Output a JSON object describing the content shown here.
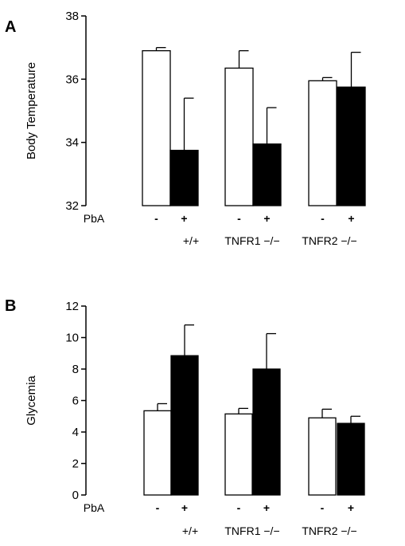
{
  "chart_data": [
    {
      "panel": "A",
      "type": "bar",
      "ylabel": "Body Temperature",
      "ylim": [
        32,
        38
      ],
      "yticks": [
        32,
        34,
        36,
        38
      ],
      "factor_label": "PbA",
      "subgroup_labels": [
        "-",
        "+"
      ],
      "categories": [
        "+/+",
        "TNFR1 −/−",
        "TNFR2 −/−"
      ],
      "series": [
        {
          "key": "minus",
          "values": [
            36.9,
            36.35,
            35.95
          ],
          "errors": [
            0.1,
            0.55,
            0.1
          ],
          "fill": "#ffffff"
        },
        {
          "key": "plus",
          "values": [
            33.75,
            33.95,
            35.75
          ],
          "errors": [
            1.65,
            1.15,
            1.1
          ],
          "fill": "#000000"
        }
      ]
    },
    {
      "panel": "B",
      "type": "bar",
      "ylabel": "Glycemia",
      "ylim": [
        0,
        12
      ],
      "yticks": [
        0,
        2,
        4,
        6,
        8,
        10,
        12
      ],
      "factor_label": "PbA",
      "subgroup_labels": [
        "-",
        "+"
      ],
      "categories": [
        "+/+",
        "TNFR1 −/−",
        "TNFR2 −/−"
      ],
      "series": [
        {
          "key": "minus",
          "values": [
            5.35,
            5.15,
            4.9
          ],
          "errors": [
            0.45,
            0.35,
            0.55
          ],
          "fill": "#ffffff"
        },
        {
          "key": "plus",
          "values": [
            8.85,
            8.0,
            4.55
          ],
          "errors": [
            1.95,
            2.25,
            0.45
          ],
          "fill": "#000000"
        }
      ]
    }
  ]
}
